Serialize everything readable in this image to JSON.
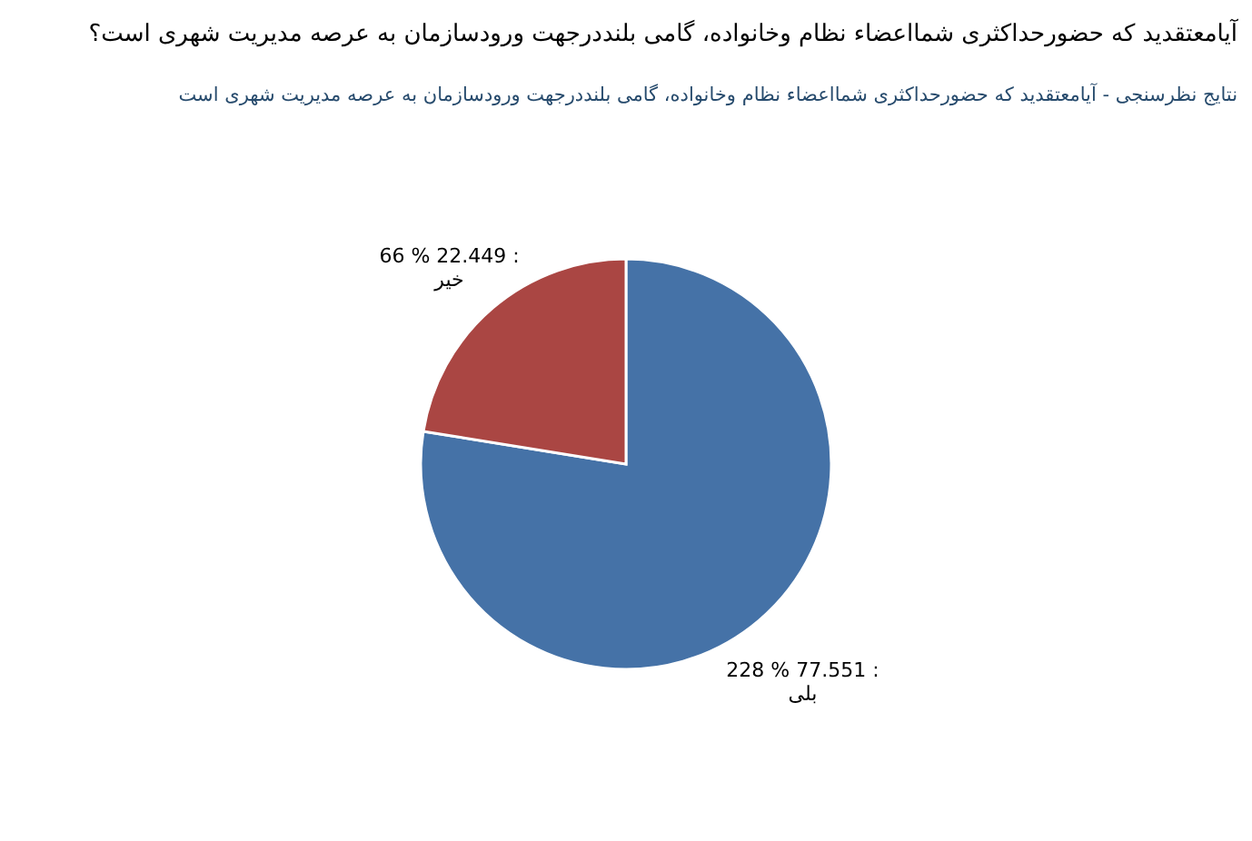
{
  "chart_data": {
    "type": "pie",
    "title": "آیامعتقدید که حضورحداکثری شمااعضاء نظام وخانواده، گامی بلنددرجهت ورودسازمان به عرصه مدیریت شهری است؟",
    "subtitle": "نتایج نظرسنجی - آیامعتقدید که حضورحداکثری شمااعضاء نظام وخانواده، گامی بلنددرجهت ورودسازمان به عرصه مدیریت شهری است",
    "categories": [
      "بلی",
      "خیر"
    ],
    "values": [
      228,
      66
    ],
    "value_labels": [
      "228 % 77.551 :",
      "66 % 22.449 :"
    ],
    "colors": [
      "#4572a7",
      "#aa4643"
    ],
    "legend": false
  }
}
